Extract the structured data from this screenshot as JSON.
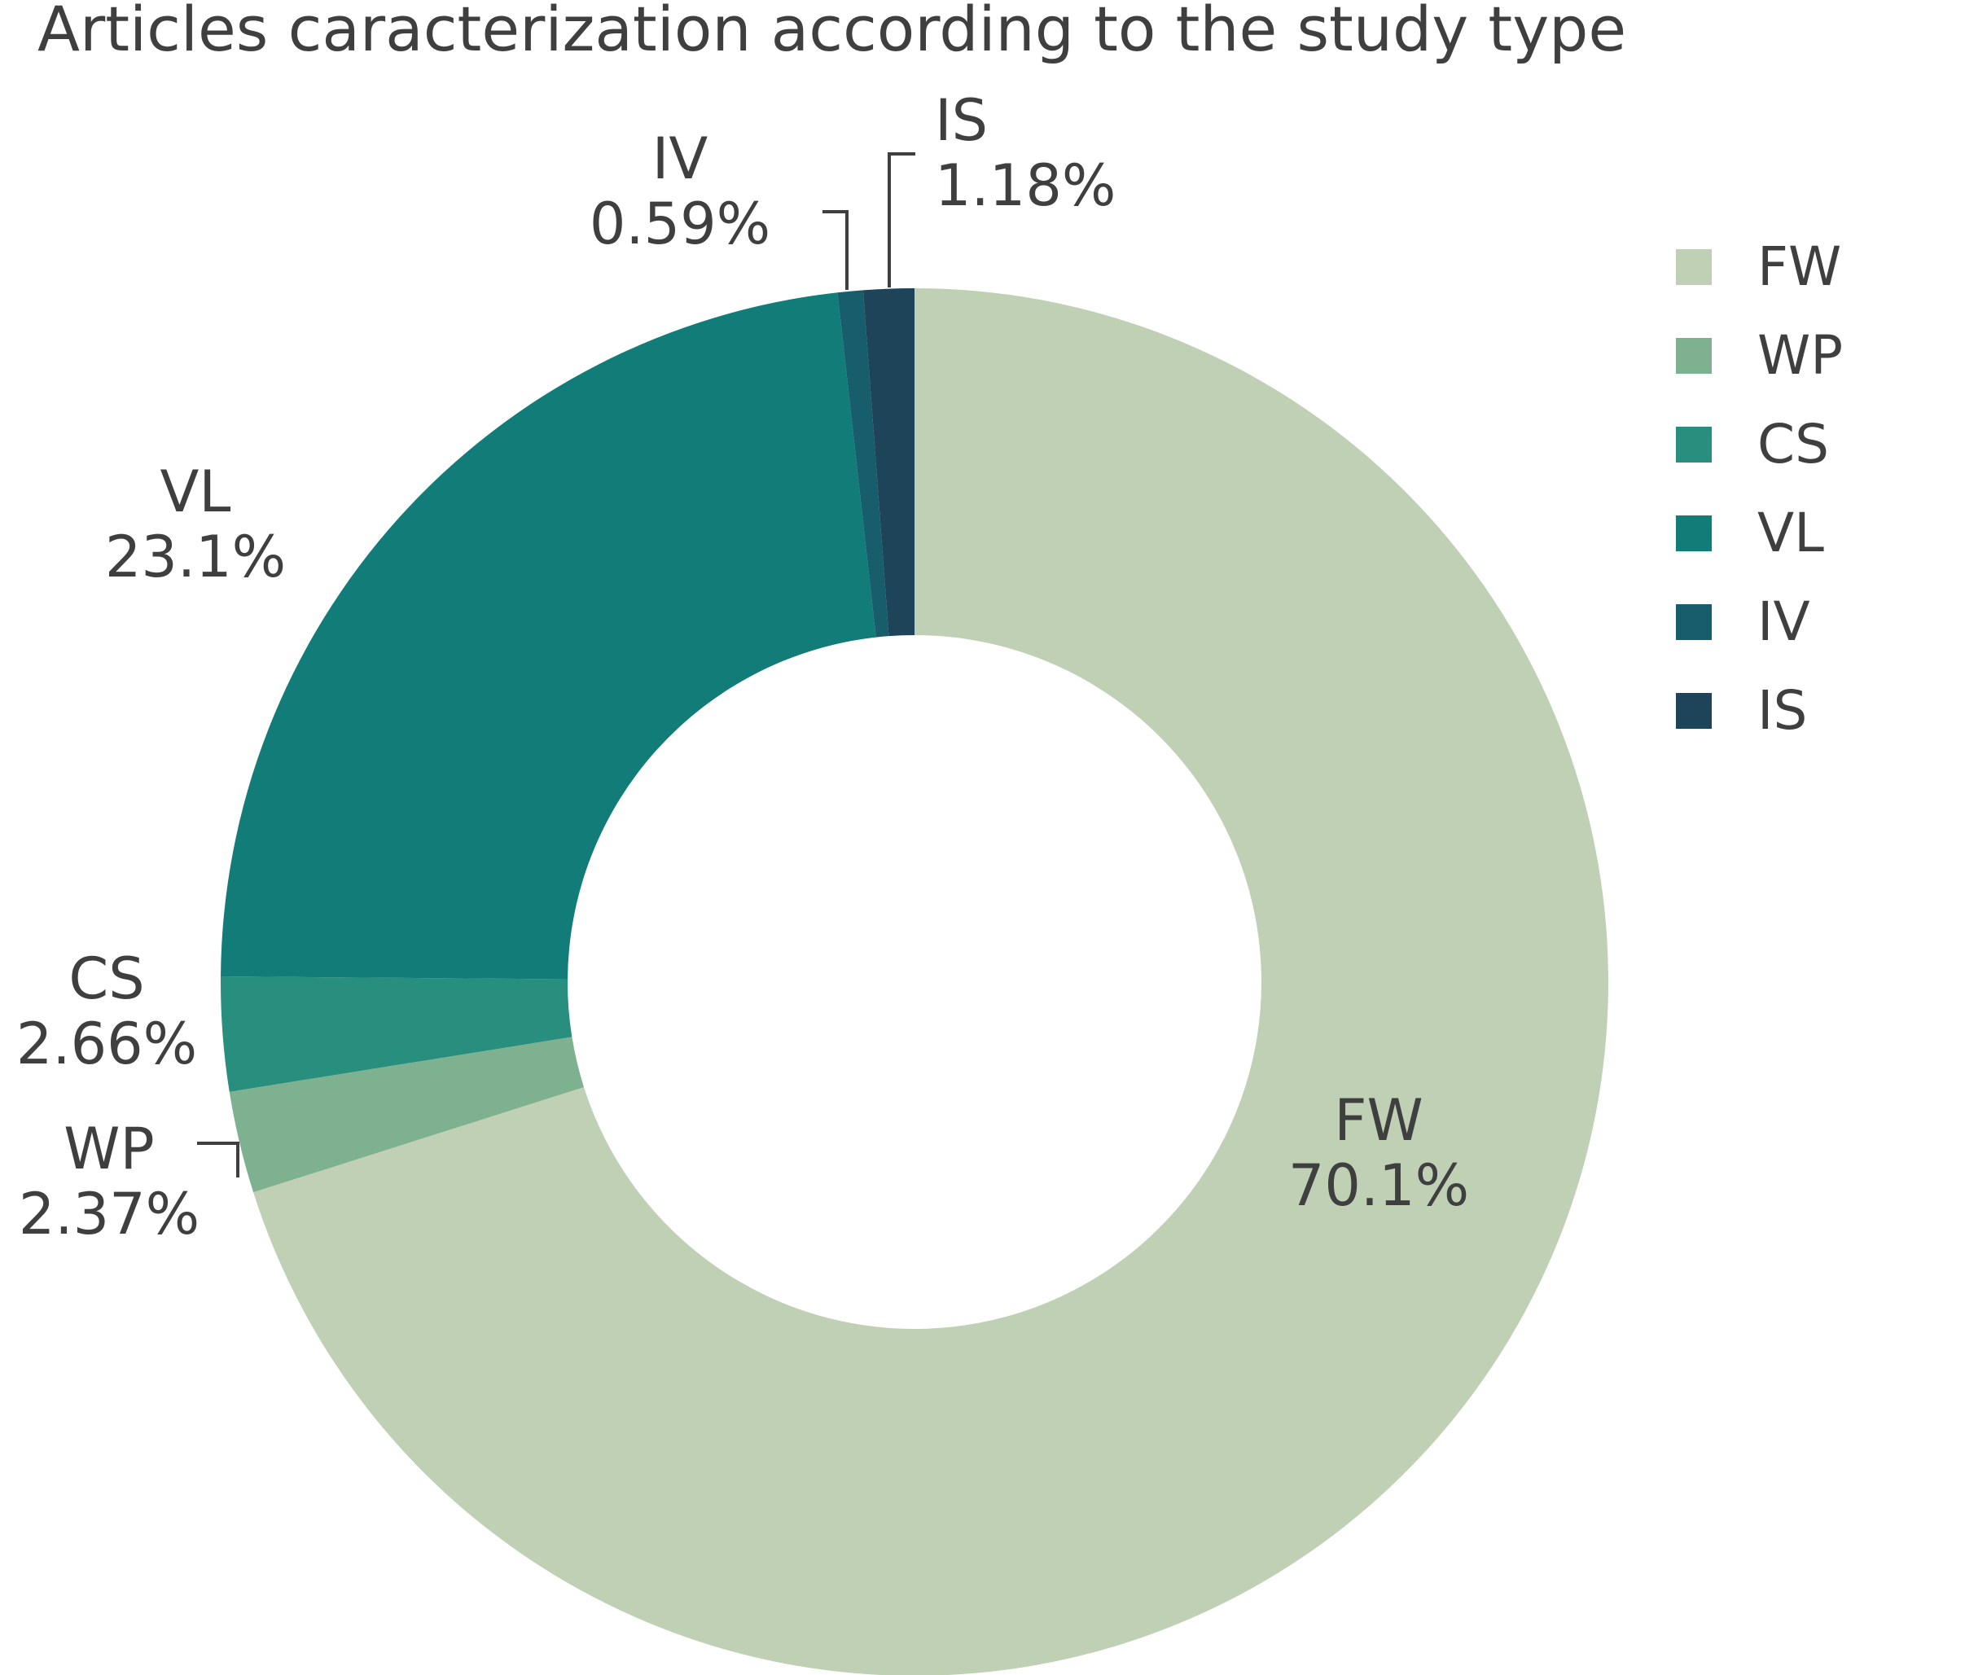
{
  "chart_data": {
    "type": "pie",
    "title": "Articles caracterization according to the study type",
    "categories": [
      "FW",
      "WP",
      "CS",
      "VL",
      "IV",
      "IS"
    ],
    "values": [
      70.1,
      2.37,
      2.66,
      23.1,
      0.59,
      1.18
    ],
    "value_labels": [
      "70.1%",
      "2.37%",
      "2.66%",
      "23.1%",
      "0.59%",
      "1.18%"
    ],
    "colors": [
      "#bfd0b5",
      "#7db18f",
      "#288e7e",
      "#117c78",
      "#175d6b",
      "#1e4459"
    ],
    "hole": 0.5,
    "direction": "clockwise",
    "start": "top",
    "legend_position": "top-right"
  }
}
